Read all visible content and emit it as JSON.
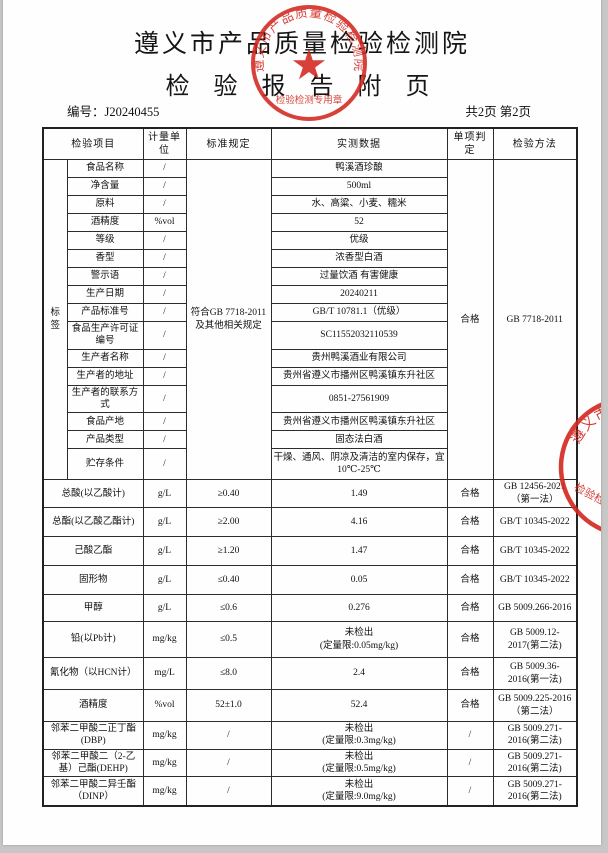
{
  "page": {
    "institute": "遵义市产品质量检验检测院",
    "doc_title": "检 验 报 告 附 页",
    "report_no": "编号：J20240455",
    "pagination": "共2页 第2页"
  },
  "stamp": {
    "ring_text": "遵义市产品质量检验检测院",
    "bottom_text": "检验检测专用章",
    "star": "★",
    "color": "#d3281f"
  },
  "table": {
    "headers": [
      "检验项目",
      "计量单位",
      "标准规定",
      "实测数据",
      "单项判定",
      "检验方法"
    ],
    "label_section": {
      "group_label": "标签",
      "standard": "符合GB 7718-2011及其他相关规定",
      "judgment": "合格",
      "method": "GB 7718-2011",
      "rows": [
        {
          "item": "食品名称",
          "unit": "/",
          "measured": "鸭溪酒珍酿"
        },
        {
          "item": "净含量",
          "unit": "/",
          "measured": "500ml"
        },
        {
          "item": "原料",
          "unit": "/",
          "measured": "水、高粱、小麦、糯米"
        },
        {
          "item": "酒精度",
          "unit": "%vol",
          "measured": "52"
        },
        {
          "item": "等级",
          "unit": "/",
          "measured": "优级"
        },
        {
          "item": "香型",
          "unit": "/",
          "measured": "浓香型白酒"
        },
        {
          "item": "警示语",
          "unit": "/",
          "measured": "过量饮酒 有害健康"
        },
        {
          "item": "生产日期",
          "unit": "/",
          "measured": "20240211"
        },
        {
          "item": "产品标准号",
          "unit": "/",
          "measured": "GB/T 10781.1（优级）"
        },
        {
          "item": "食品生产许可证编号",
          "unit": "/",
          "measured": "SC11552032110539"
        },
        {
          "item": "生产者名称",
          "unit": "/",
          "measured": "贵州鸭溪酒业有限公司"
        },
        {
          "item": "生产者的地址",
          "unit": "/",
          "measured": "贵州省遵义市播州区鸭溪镇东升社区"
        },
        {
          "item": "生产者的联系方式",
          "unit": "/",
          "measured": "0851-27561909"
        },
        {
          "item": "食品产地",
          "unit": "/",
          "measured": "贵州省遵义市播州区鸭溪镇东升社区"
        },
        {
          "item": "产品类型",
          "unit": "/",
          "measured": "固态法白酒"
        },
        {
          "item": "贮存条件",
          "unit": "/",
          "measured": "干燥、通风、阴凉及清洁的室内保存，宜10℃-25℃"
        }
      ]
    },
    "result_rows": [
      {
        "item": "总酸(以乙酸计)",
        "unit": "g/L",
        "standard": "≥0.40",
        "measured": "1.49",
        "judgment": "合格",
        "method": "GB 12456-2021（第一法）"
      },
      {
        "item": "总酯(以乙酸乙酯计)",
        "unit": "g/L",
        "standard": "≥2.00",
        "measured": "4.16",
        "judgment": "合格",
        "method": "GB/T 10345-2022"
      },
      {
        "item": "己酸乙酯",
        "unit": "g/L",
        "standard": "≥1.20",
        "measured": "1.47",
        "judgment": "合格",
        "method": "GB/T 10345-2022"
      },
      {
        "item": "固形物",
        "unit": "g/L",
        "standard": "≤0.40",
        "measured": "0.05",
        "judgment": "合格",
        "method": "GB/T 10345-2022"
      },
      {
        "item": "甲醇",
        "unit": "g/L",
        "standard": "≤0.6",
        "measured": "0.276",
        "judgment": "合格",
        "method": "GB 5009.266-2016"
      },
      {
        "item": "铅(以Pb计)",
        "unit": "mg/kg",
        "standard": "≤0.5",
        "measured": "未检出",
        "measured_note": "(定量限:0.05mg/kg)",
        "judgment": "合格",
        "method": "GB 5009.12-2017(第二法)"
      },
      {
        "item": "氰化物（以HCN计）",
        "unit": "mg/L",
        "standard": "≤8.0",
        "measured": "2.4",
        "judgment": "合格",
        "method": "GB 5009.36-2016(第一法)"
      },
      {
        "item": "酒精度",
        "unit": "%vol",
        "standard": "52±1.0",
        "measured": "52.4",
        "judgment": "合格",
        "method": "GB 5009.225-2016（第二法）"
      },
      {
        "item": "邻苯二甲酸二正丁酯(DBP)",
        "unit": "mg/kg",
        "standard": "/",
        "measured": "未检出",
        "measured_note": "(定量限:0.3mg/kg)",
        "judgment": "/",
        "method": "GB 5009.271-2016(第二法)"
      },
      {
        "item": "邻苯二甲酸二（2-乙基）己酯(DEHP)",
        "unit": "mg/kg",
        "standard": "/",
        "measured": "未检出",
        "measured_note": "(定量限:0.5mg/kg)",
        "judgment": "/",
        "method": "GB 5009.271-2016(第二法)"
      },
      {
        "item": "邻苯二甲酸二异壬酯（DINP）",
        "unit": "mg/kg",
        "standard": "/",
        "measured": "未检出",
        "measured_note": "(定量限:9.0mg/kg)",
        "judgment": "/",
        "method": "GB 5009.271-2016(第二法)"
      }
    ]
  }
}
